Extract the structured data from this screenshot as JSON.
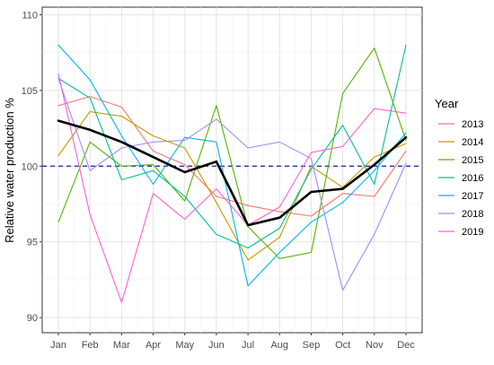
{
  "chart_data": {
    "type": "line",
    "title": "",
    "xlabel": "",
    "ylabel": "Relative water production %",
    "categories": [
      "Jan",
      "Feb",
      "Mar",
      "Apr",
      "May",
      "Jun",
      "Jul",
      "Aug",
      "Sep",
      "Oct",
      "Nov",
      "Dec"
    ],
    "ylim": [
      89,
      110.5
    ],
    "yticks": [
      90,
      95,
      100,
      105,
      110
    ],
    "grid": true,
    "legend": {
      "title": "Year",
      "placement": "right"
    },
    "reference_line": {
      "y": 100,
      "style": "dashed",
      "color": "#1a1aa6"
    },
    "series": [
      {
        "name": "2013",
        "color": "#F8766D",
        "values": [
          104.0,
          104.6,
          103.9,
          101.0,
          100.1,
          98.0,
          97.4,
          97.0,
          96.7,
          98.2,
          98.0,
          101.0
        ]
      },
      {
        "name": "2014",
        "color": "#C49A00",
        "values": [
          100.7,
          103.6,
          103.3,
          102.0,
          101.2,
          97.6,
          93.8,
          95.3,
          100.0,
          98.6,
          100.6,
          101.5
        ]
      },
      {
        "name": "2015",
        "color": "#53B400",
        "values": [
          96.3,
          101.6,
          100.0,
          100.1,
          97.7,
          104.0,
          96.0,
          93.9,
          94.3,
          104.8,
          107.8,
          101.7
        ]
      },
      {
        "name": "2016",
        "color": "#00C094",
        "values": [
          105.8,
          104.5,
          99.1,
          99.7,
          98.0,
          95.5,
          94.6,
          95.9,
          99.8,
          102.7,
          98.8,
          108.0
        ]
      },
      {
        "name": "2017",
        "color": "#00B6EB",
        "values": [
          108.0,
          105.7,
          102.0,
          98.8,
          101.9,
          101.6,
          92.1,
          94.3,
          96.3,
          97.6,
          99.7,
          102.2
        ]
      },
      {
        "name": "2018",
        "color": "#A58AFF",
        "values": [
          105.8,
          99.7,
          101.2,
          101.6,
          101.7,
          103.1,
          101.2,
          101.6,
          100.5,
          91.8,
          95.5,
          100.2
        ]
      },
      {
        "name": "2019",
        "color": "#FB61D7",
        "values": [
          106.1,
          96.8,
          91.0,
          98.2,
          96.5,
          98.5,
          96.1,
          97.3,
          100.9,
          101.3,
          103.8,
          103.5
        ]
      },
      {
        "color": "#000000",
        "values": [
          103.0,
          102.4,
          101.6,
          100.6,
          99.6,
          100.3,
          96.1,
          96.6,
          98.3,
          98.5,
          100.1,
          101.9
        ]
      }
    ]
  }
}
